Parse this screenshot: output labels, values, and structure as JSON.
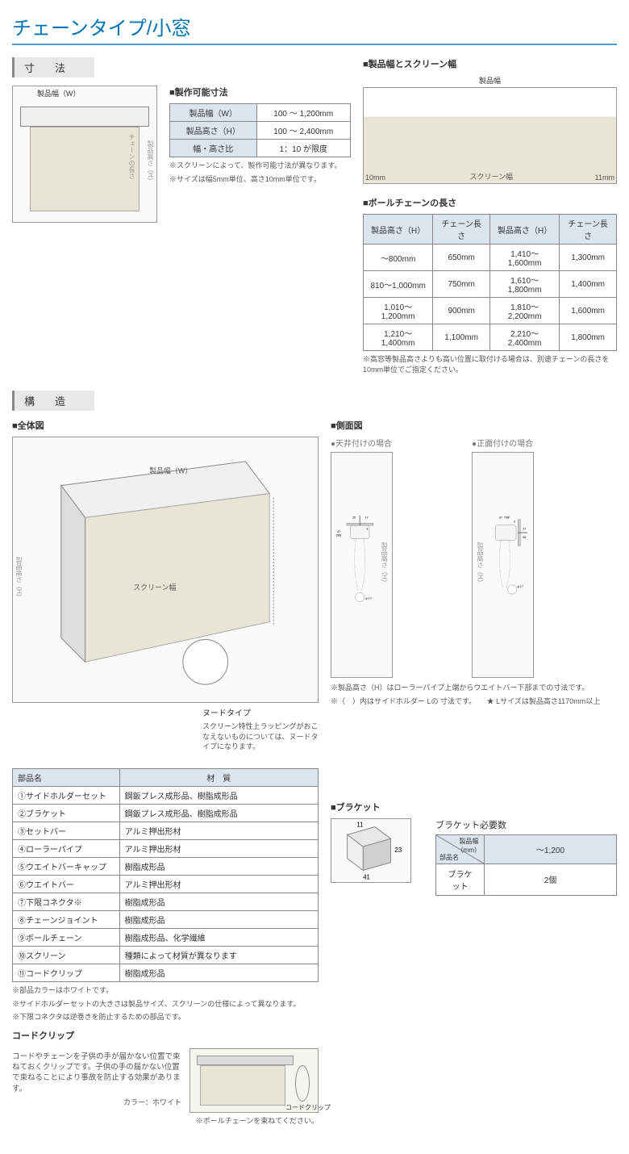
{
  "title": "チェーンタイプ/小窓",
  "sections": {
    "dimensions": "寸　法",
    "structure": "構　造"
  },
  "dim_diagram": {
    "width_label": "製品幅（W）",
    "height_label": "製品高さ（H）",
    "chain_label": "チェーンの長さ"
  },
  "spec": {
    "heading": "■製作可能寸法",
    "rows": [
      {
        "label": "製品幅（W）",
        "value": "100 ～ 1,200mm"
      },
      {
        "label": "製品高さ（H）",
        "value": "100 ～ 2,400mm"
      },
      {
        "label": "幅・高さ比",
        "value": "1：10 が限度"
      }
    ],
    "note1": "※スクリーンによって、製作可能寸法が異なります。",
    "note2": "※サイズは幅5mm単位、高さ10mm単位です。"
  },
  "screen_width": {
    "heading": "■製品幅とスクリーン幅",
    "top_label": "製品幅",
    "left_gap": "10mm",
    "center_label": "スクリーン幅",
    "right_gap": "11mm"
  },
  "chain_length": {
    "heading": "■ボールチェーンの長さ",
    "headers": [
      "製品高さ（H）",
      "チェーン長さ",
      "製品高さ（H）",
      "チェーン長さ"
    ],
    "rows": [
      [
        "～800mm",
        "650mm",
        "1,410～1,600mm",
        "1,300mm"
      ],
      [
        "810～1,000mm",
        "750mm",
        "1,610～1,800mm",
        "1,400mm"
      ],
      [
        "1,010～1,200mm",
        "900mm",
        "1,810～2,200mm",
        "1,600mm"
      ],
      [
        "1,210～1,400mm",
        "1,100mm",
        "2,210～2,400mm",
        "1,800mm"
      ]
    ],
    "note": "※高窓等製品高さよりも高い位置に取付ける場合は、別途チェーンの長さを10mm単位でご指定ください。"
  },
  "structure": {
    "overall_heading": "■全体図",
    "nude_label": "ヌードタイプ",
    "nude_note": "スクリーン特性上ラッピングがおこなえないものについては、ヌードタイプになります。",
    "side_heading": "■側面図",
    "ceiling_label": "●天井付けの場合",
    "wall_label": "●正面付けの場合",
    "side_note1": "※製品高さ（H）はローラーパイプ上端からウエイトバー下部までの寸法です。",
    "side_note2": "※（　）内はサイドホルダー Lの 寸法です。　　★ Lサイズは製品高さ1170mm以上",
    "dims": {
      "d35": "35",
      "d17": "17",
      "d3": "3",
      "d47": "47\n(58)",
      "d47b": "47（58）",
      "phi17": "φ 17",
      "height_label": "製品高さ（H）"
    }
  },
  "parts": {
    "headers": [
      "部品名",
      "材　質"
    ],
    "rows": [
      [
        "①サイドホルダーセット",
        "鋼鈑プレス成形品、樹脂成形品"
      ],
      [
        "②ブラケット",
        "鋼鈑プレス成形品、樹脂成形品"
      ],
      [
        "③セットバー",
        "アルミ押出形材"
      ],
      [
        "④ローラーパイプ",
        "アルミ押出形材"
      ],
      [
        "⑤ウエイトバーキャップ",
        "樹脂成形品"
      ],
      [
        "⑥ウエイトバー",
        "アルミ押出形材"
      ],
      [
        "⑦下限コネクタ※",
        "樹脂成形品"
      ],
      [
        "⑧チェーンジョイント",
        "樹脂成形品"
      ],
      [
        "⑨ボールチェーン",
        "樹脂成形品、化学繊維"
      ],
      [
        "⑩スクリーン",
        "種類によって材質が異なります"
      ],
      [
        "⑪コードクリップ",
        "樹脂成形品"
      ]
    ],
    "note1": "※部品カラーはホワイトです。",
    "note2": "※サイドホルダーセットの大きさは製品サイズ、スクリーンの仕様によって異なります。",
    "note3": "※下限コネクタは逆巻きを防止するための部品です。"
  },
  "bracket": {
    "heading": "■ブラケット",
    "dims": {
      "w": "11",
      "h": "23",
      "d": "41"
    },
    "count_heading": "ブラケット必要数",
    "tbl": {
      "col_head": "製品幅\n（mm）",
      "row_head": "部品名",
      "range": "～1,200",
      "name": "ブラケット",
      "count": "2個"
    }
  },
  "cord_clip": {
    "heading": "コードクリップ",
    "text": "コードやチェーンを子供の手が届かない位置で束ねておくクリップです。子供の手の届かない位置で束ねることにより事故を防止する効果があります。",
    "color": "カラー：ホワイト",
    "label1": "コードクリップ",
    "label2": "※ボールチェーンを束ねてください。"
  },
  "colors": {
    "title": "#0074b3",
    "border": "#4b9bd5",
    "th_bg": "#dce5ee",
    "fabric": "#e8e5d5"
  }
}
